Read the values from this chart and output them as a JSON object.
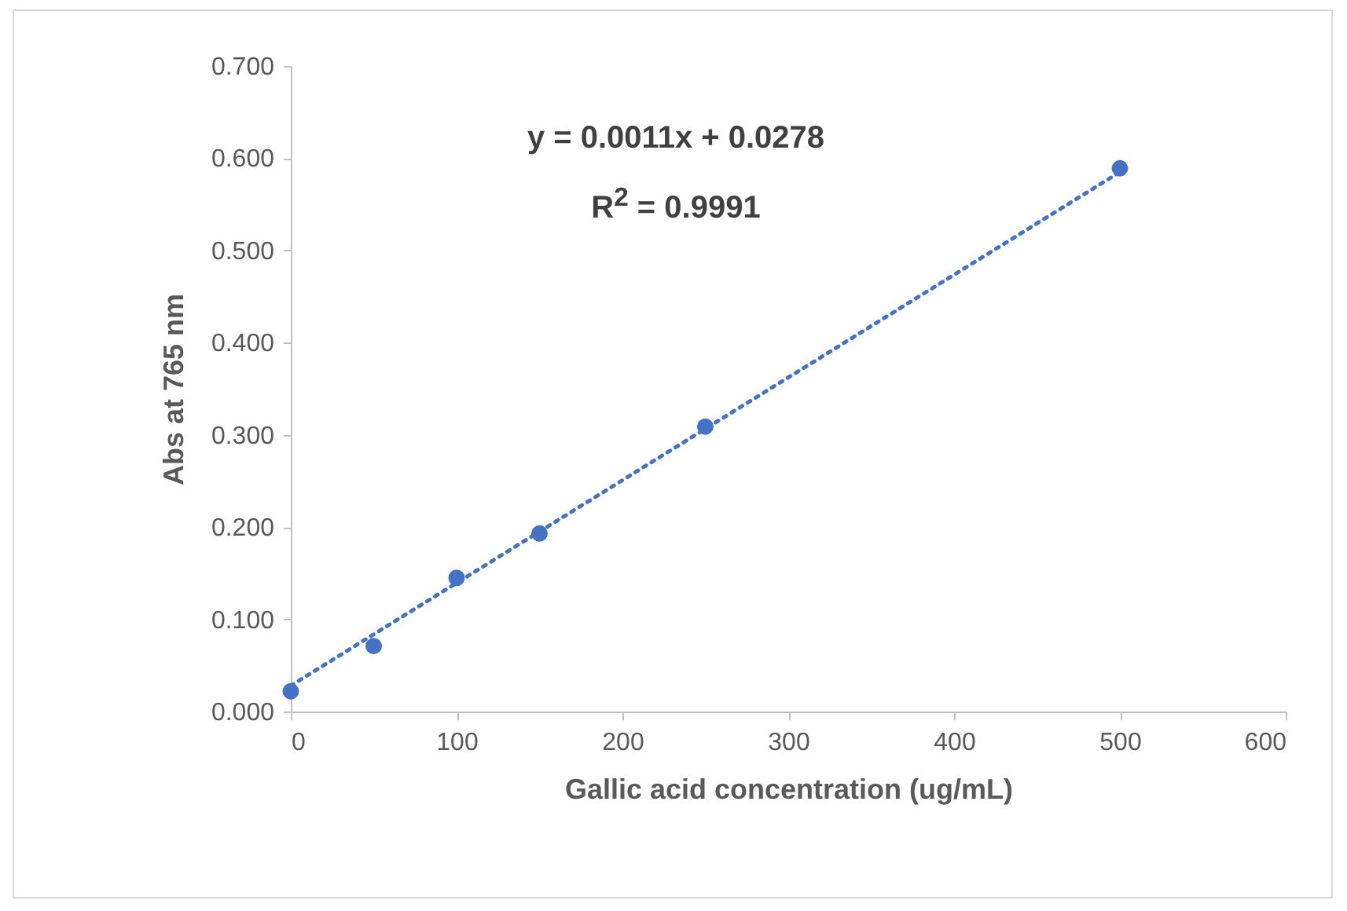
{
  "chart_data": {
    "type": "scatter",
    "xlabel": "Gallic acid concentration (ug/mL)",
    "ylabel": "Abs at 765 nm",
    "x": [
      0,
      50,
      100,
      150,
      250,
      500
    ],
    "series": [
      {
        "color": "#4472c4",
        "marker": "circle",
        "values": [
          0.022,
          0.071,
          0.145,
          0.193,
          0.309,
          0.589
        ]
      },
      {
        "type": "line",
        "color": "#4472c4",
        "marker": "none",
        "line_style": "dotted",
        "x": [
          0,
          500
        ],
        "values": [
          0.028,
          0.585
        ]
      }
    ],
    "annotations": [
      "y = 0.0011x + 0.0278",
      "R$^{2}$ = 0.9991"
    ],
    "xlim": [
      0,
      600
    ],
    "xticks": [
      0,
      100,
      200,
      300,
      400,
      500,
      600
    ],
    "ylim": [
      0,
      0.7
    ],
    "yticks": [
      {
        "value": 0,
        "label": "0.000"
      },
      {
        "value": 0.1,
        "label": "0.100"
      },
      {
        "value": 0.2,
        "label": "0.200"
      },
      {
        "value": 0.3,
        "label": "0.300"
      },
      {
        "value": 0.4,
        "label": "0.400"
      },
      {
        "value": 0.5,
        "label": "0.500"
      },
      {
        "value": 0.6,
        "label": "0.600"
      },
      {
        "value": 0.7,
        "label": "0.700"
      }
    ],
    "grid": false
  }
}
